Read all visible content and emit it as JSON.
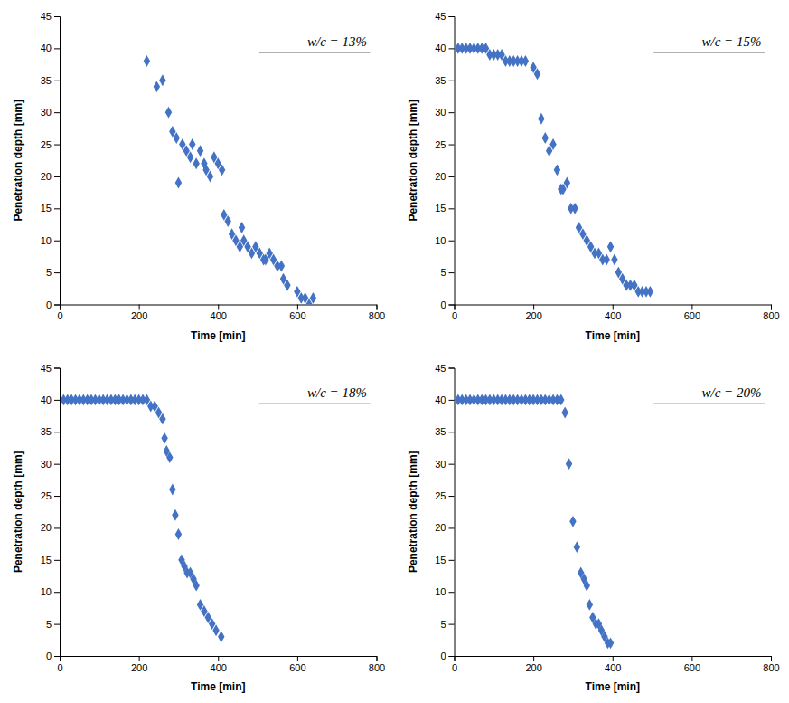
{
  "chart_data": [
    {
      "type": "scatter",
      "annotation": "w/c = 13%",
      "x": [
        220,
        245,
        260,
        275,
        285,
        295,
        300,
        310,
        320,
        330,
        335,
        345,
        355,
        365,
        370,
        380,
        390,
        400,
        410,
        415,
        425,
        435,
        445,
        455,
        460,
        465,
        475,
        485,
        495,
        505,
        515,
        520,
        530,
        540,
        550,
        560,
        565,
        575,
        600,
        610,
        620,
        630,
        640
      ],
      "values": [
        38,
        34,
        35,
        30,
        27,
        26,
        19,
        25,
        24,
        23,
        25,
        22,
        24,
        22,
        21,
        20,
        23,
        22,
        21,
        14,
        13,
        11,
        10,
        9,
        12,
        10,
        9,
        8,
        9,
        8,
        7,
        7,
        8,
        7,
        6,
        6,
        4,
        3,
        2,
        1,
        1,
        0,
        1
      ],
      "xlim": [
        0,
        800
      ],
      "ylim": [
        0,
        45
      ],
      "xticks": [
        0,
        200,
        400,
        600,
        800
      ],
      "yticks": [
        0,
        5,
        10,
        15,
        20,
        25,
        30,
        35,
        40,
        45
      ],
      "xlabel": "Time [min]",
      "ylabel": "Penetration depth [mm]",
      "color": "#4472C4",
      "marker": "diamond",
      "grid": false
    },
    {
      "type": "scatter",
      "annotation": "w/c = 15%",
      "x": [
        10,
        20,
        30,
        40,
        50,
        60,
        70,
        80,
        90,
        100,
        110,
        120,
        130,
        140,
        150,
        160,
        170,
        180,
        200,
        210,
        220,
        230,
        240,
        250,
        260,
        270,
        275,
        285,
        295,
        305,
        315,
        325,
        335,
        345,
        355,
        365,
        375,
        385,
        395,
        405,
        415,
        425,
        435,
        445,
        455,
        465,
        475,
        485,
        495
      ],
      "values": [
        40,
        40,
        40,
        40,
        40,
        40,
        40,
        40,
        39,
        39,
        39,
        39,
        38,
        38,
        38,
        38,
        38,
        38,
        37,
        36,
        29,
        26,
        24,
        25,
        21,
        18,
        18,
        19,
        15,
        15,
        12,
        11,
        10,
        9,
        8,
        8,
        7,
        7,
        9,
        7,
        5,
        4,
        3,
        3,
        3,
        2,
        2,
        2,
        2
      ],
      "xlim": [
        0,
        800
      ],
      "ylim": [
        0,
        45
      ],
      "xticks": [
        0,
        200,
        400,
        600,
        800
      ],
      "yticks": [
        0,
        5,
        10,
        15,
        20,
        25,
        30,
        35,
        40,
        45
      ],
      "xlabel": "Time [min]",
      "ylabel": "Penetration depth [mm]",
      "color": "#4472C4",
      "marker": "diamond",
      "grid": false
    },
    {
      "type": "scatter",
      "annotation": "w/c = 18%",
      "x": [
        10,
        20,
        30,
        40,
        50,
        60,
        70,
        80,
        90,
        100,
        110,
        120,
        130,
        140,
        150,
        160,
        170,
        180,
        190,
        200,
        210,
        220,
        230,
        240,
        250,
        260,
        265,
        270,
        278,
        285,
        292,
        300,
        308,
        315,
        322,
        330,
        338,
        345,
        355,
        365,
        375,
        385,
        395,
        408
      ],
      "values": [
        40,
        40,
        40,
        40,
        40,
        40,
        40,
        40,
        40,
        40,
        40,
        40,
        40,
        40,
        40,
        40,
        40,
        40,
        40,
        40,
        40,
        40,
        39,
        39,
        38,
        37,
        34,
        32,
        31,
        26,
        22,
        19,
        15,
        14,
        13,
        13,
        12,
        11,
        8,
        7,
        6,
        5,
        4,
        3
      ],
      "xlim": [
        0,
        800
      ],
      "ylim": [
        0,
        45
      ],
      "xticks": [
        0,
        200,
        400,
        600,
        800
      ],
      "yticks": [
        0,
        5,
        10,
        15,
        20,
        25,
        30,
        35,
        40,
        45
      ],
      "xlabel": "Time [min]",
      "ylabel": "Penetration depth [mm]",
      "color": "#4472C4",
      "marker": "diamond",
      "grid": false
    },
    {
      "type": "scatter",
      "annotation": "w/c = 20%",
      "x": [
        10,
        20,
        30,
        40,
        50,
        60,
        70,
        80,
        90,
        100,
        110,
        120,
        130,
        140,
        150,
        160,
        170,
        180,
        190,
        200,
        210,
        220,
        230,
        240,
        250,
        260,
        270,
        280,
        290,
        300,
        310,
        320,
        328,
        335,
        342,
        350,
        358,
        365,
        372,
        380,
        388,
        395
      ],
      "values": [
        40,
        40,
        40,
        40,
        40,
        40,
        40,
        40,
        40,
        40,
        40,
        40,
        40,
        40,
        40,
        40,
        40,
        40,
        40,
        40,
        40,
        40,
        40,
        40,
        40,
        40,
        40,
        38,
        30,
        21,
        17,
        13,
        12,
        11,
        8,
        6,
        5,
        5,
        4,
        3,
        2,
        2
      ],
      "xlim": [
        0,
        800
      ],
      "ylim": [
        0,
        45
      ],
      "xticks": [
        0,
        200,
        400,
        600,
        800
      ],
      "yticks": [
        0,
        5,
        10,
        15,
        20,
        25,
        30,
        35,
        40,
        45
      ],
      "xlabel": "Time [min]",
      "ylabel": "Penetration depth [mm]",
      "color": "#4472C4",
      "marker": "diamond",
      "grid": false
    }
  ]
}
